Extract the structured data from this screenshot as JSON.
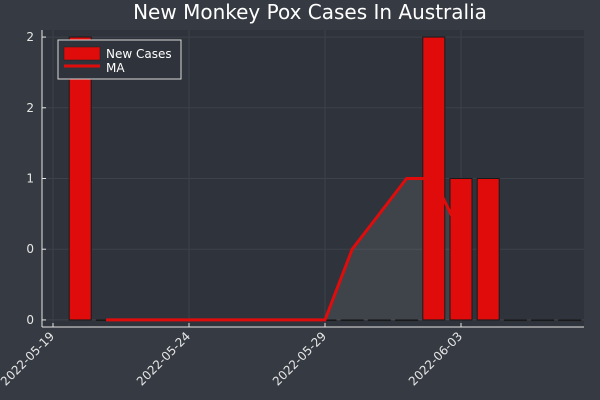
{
  "chart_data": {
    "type": "bar",
    "title": "New Monkey Pox Cases In Australia",
    "xlabel": "",
    "ylabel": "",
    "x": [
      "2022-05-20",
      "2022-05-21",
      "2022-05-22",
      "2022-05-23",
      "2022-05-24",
      "2022-05-25",
      "2022-05-26",
      "2022-05-27",
      "2022-05-28",
      "2022-05-29",
      "2022-05-30",
      "2022-05-31",
      "2022-06-01",
      "2022-06-02",
      "2022-06-03",
      "2022-06-04",
      "2022-06-05",
      "2022-06-06",
      "2022-06-07"
    ],
    "x_ticks": [
      "2022-05-19",
      "2022-05-24",
      "2022-05-29",
      "2022-06-03"
    ],
    "y_ticks": [
      {
        "value": 0,
        "label": "0"
      },
      {
        "value": 0.5,
        "label": "0"
      },
      {
        "value": 1,
        "label": "1"
      },
      {
        "value": 1.5,
        "label": "2"
      },
      {
        "value": 2,
        "label": "2"
      }
    ],
    "ylim": [
      -0.05,
      2.05
    ],
    "grid": true,
    "legend_position": "top-left",
    "series": [
      {
        "name": "New Cases",
        "kind": "bar",
        "color": "#e00c0c",
        "values": [
          2,
          0,
          0,
          0,
          0,
          0,
          0,
          0,
          0,
          0,
          0,
          0,
          0,
          2,
          1,
          1,
          0,
          0,
          0
        ]
      },
      {
        "name": "MA",
        "kind": "line",
        "color": "#e00c0c",
        "values": [
          null,
          0,
          0,
          0,
          0,
          0,
          0,
          0,
          0,
          0,
          0.5,
          0.75,
          1,
          1,
          0.6,
          null,
          null,
          null,
          null
        ]
      }
    ]
  }
}
